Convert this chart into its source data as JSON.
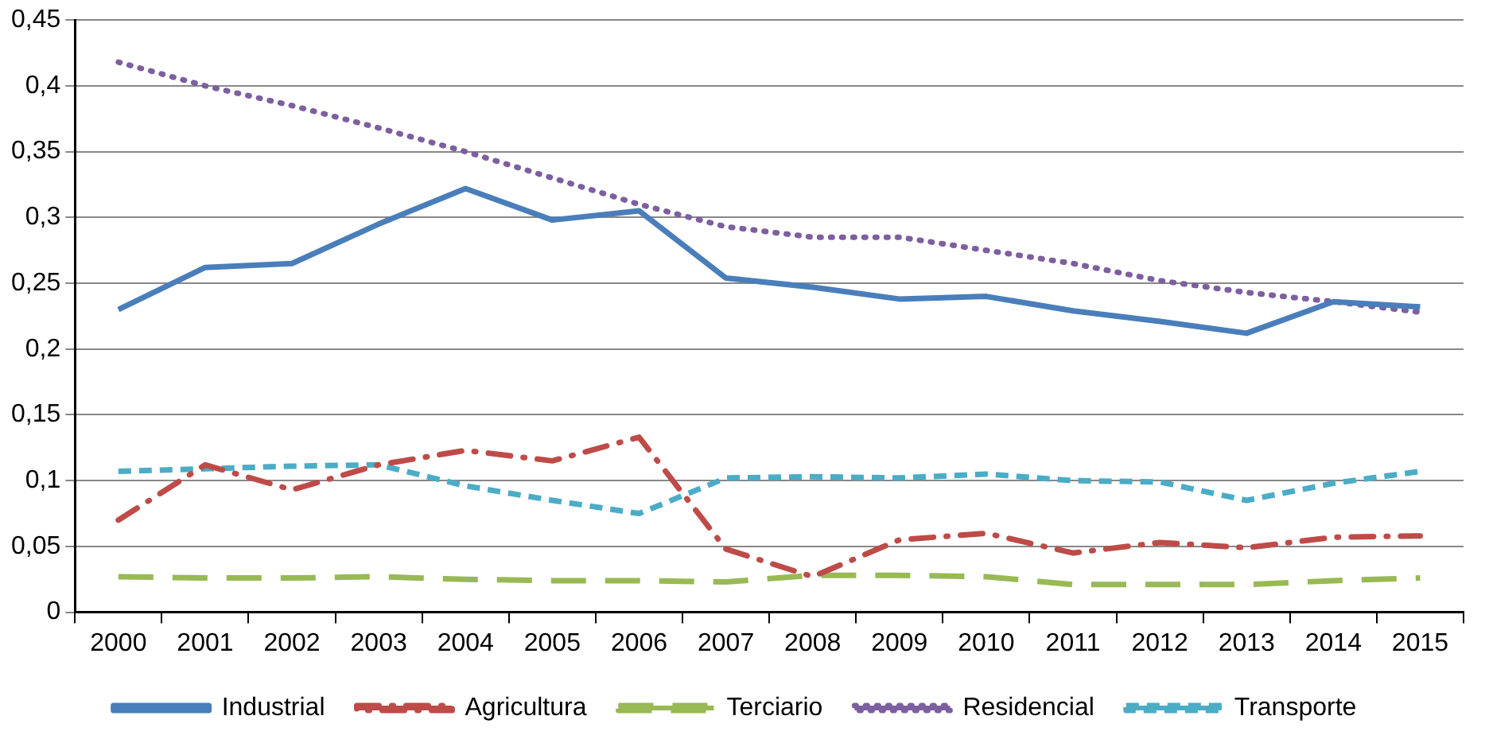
{
  "chart_data": {
    "type": "line",
    "categories": [
      "2000",
      "2001",
      "2002",
      "2003",
      "2004",
      "2005",
      "2006",
      "2007",
      "2008",
      "2009",
      "2010",
      "2011",
      "2012",
      "2013",
      "2014",
      "2015"
    ],
    "series": [
      {
        "name": "Industrial",
        "color": "#4a7ebb",
        "line_style": "solid",
        "values": [
          0.23,
          0.262,
          0.265,
          0.295,
          0.322,
          0.298,
          0.305,
          0.254,
          0.247,
          0.238,
          0.24,
          0.229,
          0.221,
          0.212,
          0.236,
          0.232
        ]
      },
      {
        "name": "Agricultura",
        "color": "#be4b48",
        "line_style": "dashdot",
        "values": [
          0.07,
          0.112,
          0.093,
          0.112,
          0.123,
          0.115,
          0.133,
          0.048,
          0.027,
          0.055,
          0.06,
          0.045,
          0.053,
          0.049,
          0.057,
          0.058
        ]
      },
      {
        "name": "Terciario",
        "color": "#98b954",
        "line_style": "longdash",
        "values": [
          0.027,
          0.026,
          0.026,
          0.027,
          0.025,
          0.024,
          0.024,
          0.023,
          0.028,
          0.028,
          0.027,
          0.021,
          0.021,
          0.021,
          0.024,
          0.026
        ]
      },
      {
        "name": "Residencial",
        "color": "#7d5fa0",
        "line_style": "dotted",
        "values": [
          0.418,
          0.4,
          0.385,
          0.368,
          0.35,
          0.33,
          0.31,
          0.293,
          0.285,
          0.285,
          0.275,
          0.265,
          0.252,
          0.243,
          0.236,
          0.228
        ]
      },
      {
        "name": "Transporte",
        "color": "#4bacc6",
        "line_style": "dashed",
        "values": [
          0.107,
          0.109,
          0.111,
          0.112,
          0.096,
          0.085,
          0.075,
          0.102,
          0.103,
          0.102,
          0.105,
          0.1,
          0.099,
          0.085,
          0.098,
          0.107
        ]
      }
    ],
    "ylim": [
      0,
      0.45
    ],
    "yticks": [
      {
        "value": 0,
        "label": "0"
      },
      {
        "value": 0.05,
        "label": "0,05"
      },
      {
        "value": 0.1,
        "label": "0,1"
      },
      {
        "value": 0.15,
        "label": "0,15"
      },
      {
        "value": 0.2,
        "label": "0,2"
      },
      {
        "value": 0.25,
        "label": "0,25"
      },
      {
        "value": 0.3,
        "label": "0,3"
      },
      {
        "value": 0.35,
        "label": "0,35"
      },
      {
        "value": 0.4,
        "label": "0,4"
      },
      {
        "value": 0.45,
        "label": "0,45"
      }
    ],
    "grid": "y",
    "legend": "bottom",
    "marker": "none"
  }
}
